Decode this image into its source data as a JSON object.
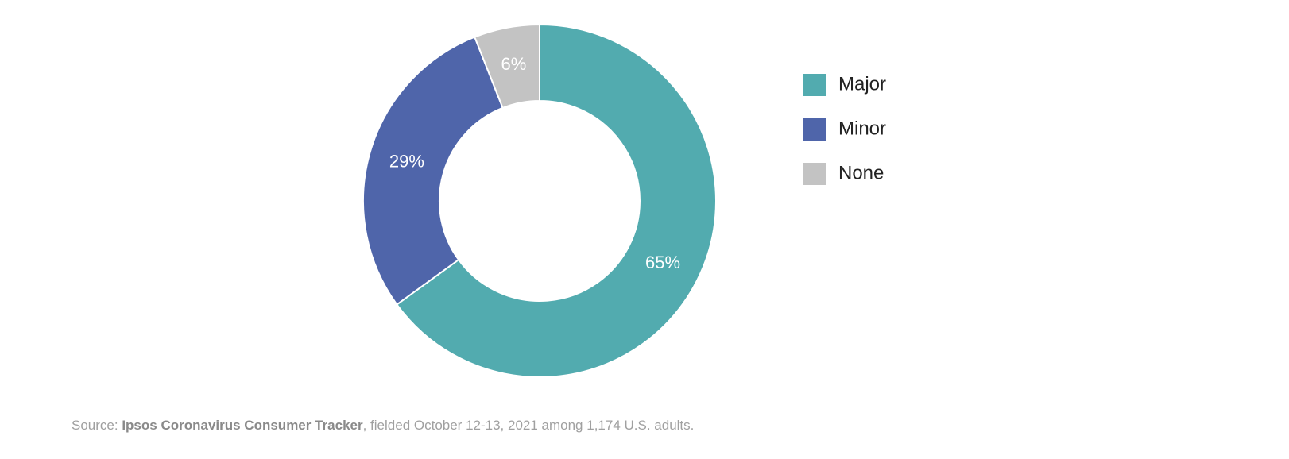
{
  "chart_data": {
    "type": "pie",
    "categories": [
      "Major",
      "Minor",
      "None"
    ],
    "values": [
      65,
      29,
      6
    ],
    "value_labels": [
      "65%",
      "29%",
      "6%"
    ],
    "colors": [
      "#52abaf",
      "#4f65aa",
      "#c3c3c3"
    ],
    "hole": true,
    "legend": "right",
    "source": {
      "lead": "Source:",
      "name": "Ipsos Coronavirus Consumer Tracker",
      "rest": ", fielded October 12-13, 2021 among 1,174 U.S. adults."
    }
  }
}
